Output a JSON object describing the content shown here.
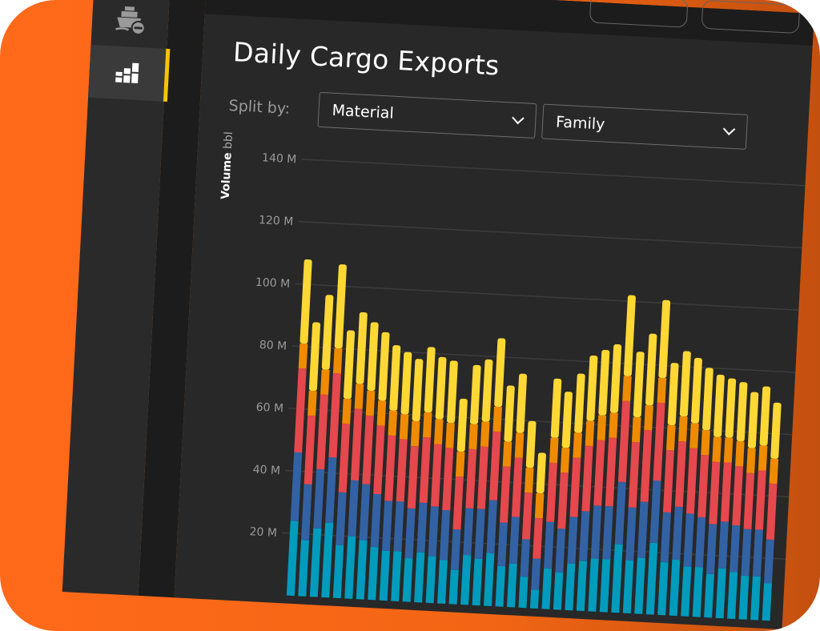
{
  "page": {
    "title": "Daily Cargo Exports"
  },
  "sidebar": {
    "items": [
      {
        "icon": "ship-icon",
        "active": false
      },
      {
        "icon": "bar-chart-icon",
        "active": true
      }
    ]
  },
  "controls": {
    "split_label": "Split by:",
    "split_primary": "Material",
    "split_secondary": "Family"
  },
  "colors": {
    "accent": "#f5c400",
    "teal": "#009bbd",
    "blue": "#3262a3",
    "red": "#e5484d",
    "orange": "#ef8b00",
    "yellow": "#fdd835"
  },
  "chart_data": {
    "type": "bar",
    "stacked": true,
    "ylabel": "Volume",
    "yunit": "bbl",
    "ylim": [
      0,
      140
    ],
    "yticks": [
      "20 M",
      "40 M",
      "60 M",
      "80 M",
      "100 M",
      "120 M",
      "140 M"
    ],
    "ytick_values": [
      20,
      40,
      60,
      80,
      100,
      120,
      140
    ],
    "grid": true,
    "series": [
      {
        "color": "#009bbd",
        "values": [
          24,
          18,
          22,
          24,
          17,
          20,
          19,
          17,
          16,
          16,
          14,
          16,
          15,
          14,
          11,
          16,
          15,
          17,
          13,
          14,
          10,
          6,
          13,
          12,
          15,
          16,
          17,
          17,
          22,
          17,
          18,
          23,
          17,
          18,
          16,
          16,
          14,
          16,
          15,
          14,
          14,
          12
        ]
      },
      {
        "color": "#3262a3",
        "values": [
          22,
          18,
          19,
          21,
          17,
          18,
          18,
          17,
          16,
          16,
          16,
          16,
          16,
          16,
          13,
          15,
          16,
          17,
          14,
          15,
          12,
          10,
          15,
          14,
          15,
          16,
          17,
          17,
          20,
          17,
          18,
          20,
          16,
          17,
          17,
          16,
          16,
          15,
          15,
          15,
          15,
          14
        ]
      },
      {
        "color": "#e5484d",
        "values": [
          27,
          22,
          24,
          27,
          22,
          23,
          22,
          22,
          21,
          20,
          20,
          21,
          20,
          20,
          17,
          19,
          20,
          22,
          18,
          19,
          15,
          13,
          19,
          18,
          19,
          21,
          21,
          22,
          26,
          21,
          23,
          25,
          20,
          21,
          21,
          20,
          20,
          19,
          19,
          18,
          19,
          18
        ]
      },
      {
        "color": "#ef8b00",
        "values": [
          8,
          8,
          8,
          8,
          8,
          8,
          8,
          8,
          8,
          8,
          8,
          8,
          8,
          8,
          8,
          8,
          8,
          8,
          8,
          8,
          8,
          8,
          8,
          8,
          8,
          8,
          8,
          8,
          8,
          8,
          8,
          8,
          8,
          8,
          8,
          8,
          8,
          8,
          8,
          8,
          8,
          8
        ]
      },
      {
        "color": "#fdd835",
        "values": [
          27,
          22,
          24,
          27,
          22,
          23,
          22,
          22,
          21,
          20,
          20,
          21,
          20,
          20,
          17,
          19,
          20,
          22,
          18,
          19,
          15,
          13,
          19,
          18,
          19,
          21,
          21,
          22,
          26,
          21,
          23,
          25,
          20,
          21,
          21,
          20,
          20,
          19,
          19,
          18,
          19,
          18
        ]
      }
    ]
  }
}
